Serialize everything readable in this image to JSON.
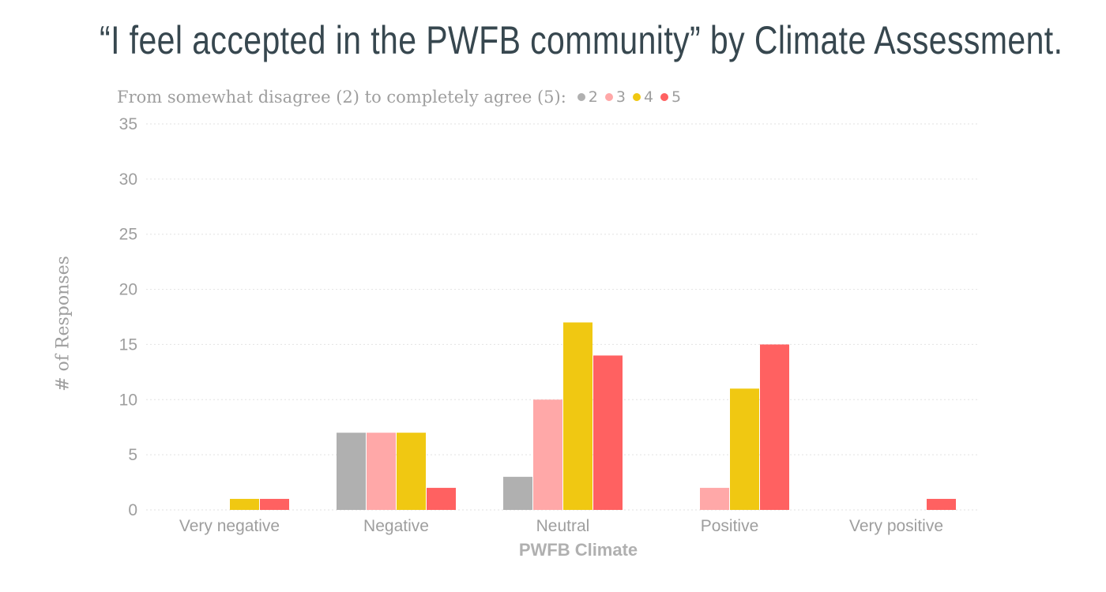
{
  "title": "“I feel accepted in the PWFB community” by Climate Assessment.",
  "legend": {
    "title": "From somewhat disagree (2) to completely agree (5):",
    "items": [
      {
        "label": "2",
        "color": "#b0b0b0"
      },
      {
        "label": "3",
        "color": "#ffa8a8"
      },
      {
        "label": "4",
        "color": "#f0c812"
      },
      {
        "label": "5",
        "color": "#ff6161"
      }
    ]
  },
  "chart_data": {
    "type": "bar",
    "title": "“I feel accepted in the PWFB community” by Climate Assessment.",
    "xlabel": "PWFB Climate",
    "ylabel": "# of Responses",
    "ylim": [
      0,
      35
    ],
    "yticks": [
      0,
      5,
      10,
      15,
      20,
      25,
      30,
      35
    ],
    "grid": true,
    "legend_position": "top-left",
    "categories": [
      "Very negative",
      "Negative",
      "Neutral",
      "Positive",
      "Very positive"
    ],
    "series": [
      {
        "name": "2",
        "color": "#b0b0b0",
        "values": [
          0,
          7,
          3,
          0,
          0
        ]
      },
      {
        "name": "3",
        "color": "#ffa8a8",
        "values": [
          0,
          7,
          10,
          2,
          0
        ]
      },
      {
        "name": "4",
        "color": "#f0c812",
        "values": [
          1,
          7,
          17,
          11,
          0
        ]
      },
      {
        "name": "5",
        "color": "#ff6161",
        "values": [
          1,
          2,
          14,
          15,
          1
        ]
      }
    ]
  }
}
